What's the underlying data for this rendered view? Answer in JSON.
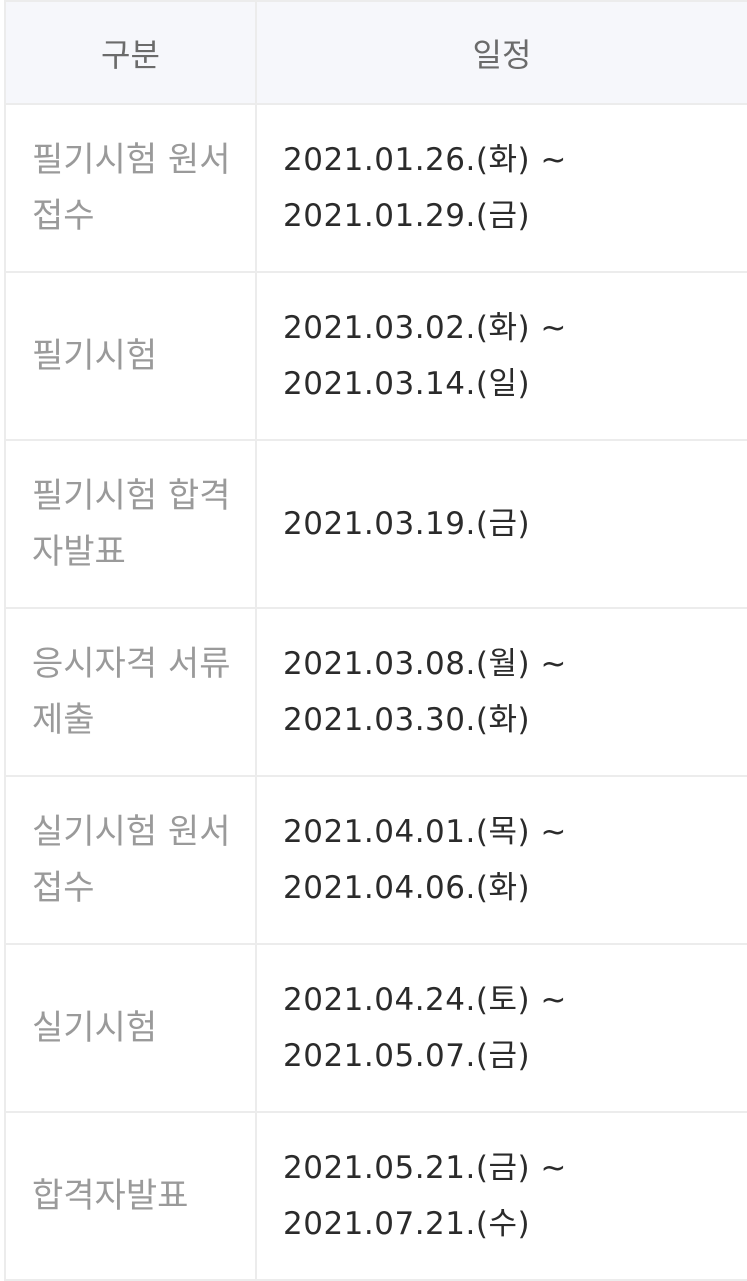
{
  "table": {
    "headers": [
      "구분",
      "일정"
    ],
    "rows": [
      {
        "category": "필기시험 원서 접수",
        "schedule": "2021.01.26.(화) ~ 2021.01.29.(금)"
      },
      {
        "category": "필기시험",
        "schedule": "2021.03.02.(화) ~ 2021.03.14.(일)"
      },
      {
        "category": "필기시험 합격자발표",
        "schedule": "2021.03.19.(금)"
      },
      {
        "category": "응시자격 서류 제출",
        "schedule": "2021.03.08.(월) ~ 2021.03.30.(화)"
      },
      {
        "category": "실기시험 원서 접수",
        "schedule": "2021.04.01.(목) ~ 2021.04.06.(화)"
      },
      {
        "category": "실기시험",
        "schedule": "2021.04.24.(토) ~ 2021.05.07.(금)"
      },
      {
        "category": "합격자발표",
        "schedule": "2021.05.21.(금) ~ 2021.07.21.(수)"
      }
    ]
  }
}
